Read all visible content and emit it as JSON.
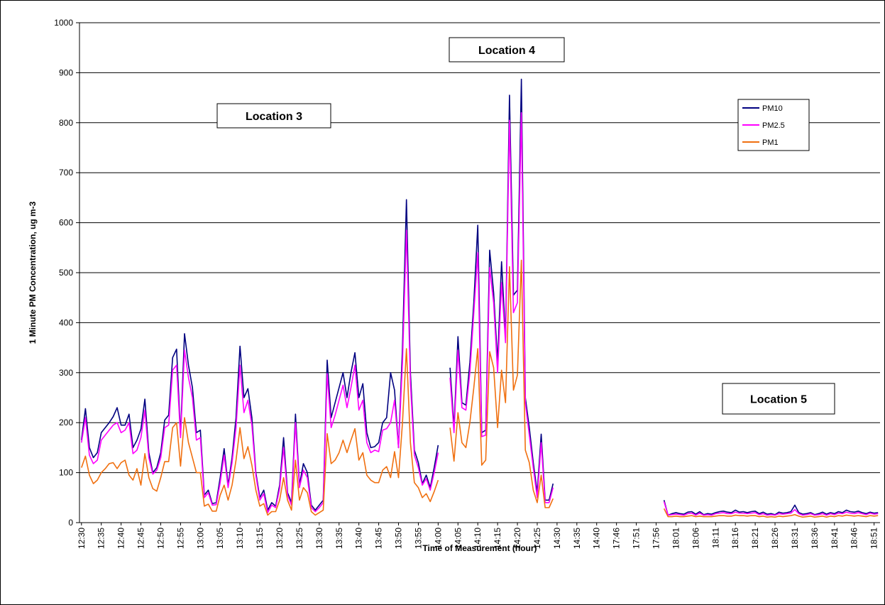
{
  "chart_data": {
    "type": "line",
    "y_label": "1 Minute PM Concentration, ug m-3",
    "x_label": "Time of Measurement (hour)",
    "annotations": [
      "Location 3",
      "Location 4",
      "Location 5"
    ],
    "ylim": [
      0,
      1000
    ],
    "yticks": [
      0,
      100,
      200,
      300,
      400,
      500,
      600,
      700,
      800,
      900,
      1000
    ],
    "grid": true,
    "legend": "right",
    "categories": [
      "12:30",
      null,
      null,
      null,
      null,
      "12:35",
      null,
      null,
      null,
      null,
      "12:40",
      null,
      null,
      null,
      null,
      "12:45",
      null,
      null,
      null,
      null,
      "12:50",
      null,
      null,
      null,
      null,
      "12:55",
      null,
      null,
      null,
      null,
      "13:00",
      null,
      null,
      null,
      null,
      "13:05",
      null,
      null,
      null,
      null,
      "13:10",
      null,
      null,
      null,
      null,
      "13:15",
      null,
      null,
      null,
      null,
      "13:20",
      null,
      null,
      null,
      null,
      "13:25",
      null,
      null,
      null,
      null,
      "13:30",
      null,
      null,
      null,
      null,
      "13:35",
      null,
      null,
      null,
      null,
      "13:40",
      null,
      null,
      null,
      null,
      "13:45",
      null,
      null,
      null,
      null,
      "13:50",
      null,
      null,
      null,
      null,
      "13:55",
      null,
      null,
      null,
      null,
      "14:00",
      null,
      null,
      null,
      null,
      "14:05",
      null,
      null,
      null,
      null,
      "14:10",
      null,
      null,
      null,
      null,
      "14:15",
      null,
      null,
      null,
      null,
      "14:20",
      null,
      null,
      null,
      null,
      "14:25",
      null,
      null,
      null,
      null,
      "14:30",
      null,
      null,
      null,
      null,
      "14:35",
      null,
      null,
      null,
      null,
      "14:40",
      null,
      null,
      null,
      null,
      "17:46",
      null,
      null,
      null,
      null,
      "17:51",
      null,
      null,
      null,
      null,
      "17:56",
      null,
      null,
      null,
      null,
      "18:01",
      null,
      null,
      null,
      null,
      "18:06",
      null,
      null,
      null,
      null,
      "18:11",
      null,
      null,
      null,
      null,
      "18:16",
      null,
      null,
      null,
      null,
      "18:21",
      null,
      null,
      null,
      null,
      "18:26",
      null,
      null,
      null,
      null,
      "18:31",
      null,
      null,
      null,
      null,
      "18:36",
      null,
      null,
      null,
      null,
      "18:41",
      null,
      null,
      null,
      null,
      "18:46",
      null,
      null,
      null,
      null,
      "18:51",
      null
    ],
    "series": [
      {
        "name": "PM10",
        "color": "#000080",
        "values": [
          165,
          228,
          150,
          130,
          140,
          180,
          190,
          200,
          212,
          230,
          195,
          195,
          217,
          150,
          165,
          187,
          247,
          140,
          100,
          110,
          140,
          205,
          215,
          330,
          347,
          175,
          378,
          315,
          270,
          180,
          185,
          55,
          65,
          38,
          40,
          90,
          148,
          75,
          130,
          210,
          353,
          250,
          268,
          210,
          100,
          50,
          65,
          25,
          40,
          33,
          75,
          170,
          60,
          40,
          217,
          75,
          118,
          100,
          35,
          25,
          35,
          45,
          325,
          210,
          240,
          270,
          300,
          250,
          300,
          340,
          250,
          278,
          180,
          150,
          152,
          160,
          200,
          210,
          300,
          265,
          150,
          350,
          646,
          300,
          145,
          120,
          78,
          95,
          70,
          110,
          155,
          null,
          null,
          310,
          190,
          372,
          240,
          235,
          320,
          440,
          595,
          180,
          185,
          545,
          460,
          320,
          522,
          370,
          855,
          455,
          465,
          887,
          250,
          190,
          120,
          60,
          177,
          45,
          45,
          78,
          null,
          null,
          null,
          null,
          null,
          null,
          null,
          null,
          null,
          null,
          null,
          null,
          null,
          null,
          null,
          null,
          null,
          null,
          null,
          null,
          null,
          null,
          null,
          null,
          null,
          null,
          null,
          45,
          15,
          18,
          20,
          18,
          17,
          21,
          22,
          17,
          22,
          16,
          18,
          17,
          20,
          22,
          23,
          21,
          20,
          25,
          21,
          22,
          20,
          22,
          23,
          18,
          21,
          17,
          18,
          16,
          21,
          19,
          20,
          22,
          35,
          20,
          17,
          18,
          20,
          16,
          18,
          21,
          17,
          20,
          18,
          22,
          20,
          25,
          22,
          21,
          23,
          20,
          18,
          21,
          19,
          20
        ]
      },
      {
        "name": "PM2.5",
        "color": "#ff00ff",
        "values": [
          160,
          210,
          135,
          118,
          125,
          165,
          175,
          185,
          195,
          200,
          180,
          185,
          200,
          138,
          145,
          170,
          225,
          130,
          97,
          105,
          130,
          190,
          195,
          305,
          315,
          170,
          345,
          290,
          250,
          165,
          170,
          50,
          60,
          35,
          36,
          80,
          135,
          70,
          120,
          190,
          315,
          220,
          245,
          195,
          95,
          45,
          58,
          20,
          35,
          30,
          68,
          150,
          55,
          35,
          200,
          70,
          105,
          90,
          30,
          22,
          30,
          40,
          298,
          190,
          215,
          245,
          275,
          230,
          270,
          315,
          225,
          245,
          160,
          140,
          145,
          142,
          185,
          188,
          200,
          245,
          150,
          320,
          585,
          280,
          135,
          110,
          75,
          88,
          65,
          100,
          140,
          null,
          null,
          290,
          180,
          345,
          230,
          225,
          300,
          420,
          540,
          172,
          175,
          510,
          440,
          300,
          480,
          360,
          805,
          420,
          440,
          820,
          240,
          175,
          110,
          50,
          160,
          40,
          40,
          70,
          null,
          null,
          null,
          null,
          null,
          null,
          null,
          null,
          null,
          null,
          null,
          null,
          null,
          null,
          null,
          null,
          null,
          null,
          null,
          null,
          null,
          null,
          null,
          null,
          null,
          null,
          null,
          42,
          15,
          16,
          17,
          16,
          15,
          18,
          19,
          15,
          19,
          15,
          16,
          15,
          18,
          19,
          20,
          18,
          18,
          21,
          19,
          19,
          18,
          19,
          20,
          16,
          18,
          15,
          16,
          15,
          18,
          17,
          18,
          19,
          26,
          18,
          15,
          16,
          18,
          15,
          16,
          18,
          15,
          18,
          16,
          19,
          18,
          21,
          19,
          18,
          20,
          18,
          16,
          19,
          17,
          18
        ]
      },
      {
        "name": "PM1",
        "color": "#f07010",
        "values": [
          110,
          133,
          95,
          78,
          85,
          100,
          108,
          118,
          120,
          108,
          120,
          125,
          95,
          85,
          108,
          75,
          138,
          90,
          68,
          63,
          90,
          122,
          122,
          190,
          200,
          113,
          210,
          160,
          130,
          100,
          100,
          33,
          37,
          23,
          23,
          55,
          75,
          45,
          75,
          125,
          190,
          128,
          152,
          115,
          65,
          33,
          38,
          15,
          22,
          22,
          45,
          90,
          45,
          25,
          125,
          45,
          70,
          60,
          22,
          15,
          20,
          25,
          178,
          118,
          125,
          140,
          165,
          140,
          165,
          188,
          125,
          140,
          95,
          85,
          80,
          80,
          105,
          112,
          90,
          142,
          90,
          200,
          348,
          160,
          80,
          70,
          50,
          58,
          42,
          62,
          85,
          null,
          null,
          190,
          123,
          220,
          160,
          150,
          200,
          270,
          348,
          115,
          125,
          342,
          310,
          190,
          305,
          240,
          512,
          265,
          295,
          525,
          145,
          120,
          65,
          40,
          95,
          30,
          30,
          48,
          null,
          null,
          null,
          null,
          null,
          null,
          null,
          null,
          null,
          null,
          null,
          null,
          null,
          null,
          null,
          null,
          null,
          null,
          null,
          null,
          null,
          null,
          null,
          null,
          null,
          null,
          null,
          28,
          12,
          12,
          13,
          12,
          12,
          13,
          14,
          12,
          13,
          12,
          12,
          12,
          13,
          14,
          14,
          13,
          13,
          15,
          14,
          14,
          13,
          14,
          14,
          12,
          13,
          11,
          12,
          11,
          13,
          12,
          13,
          14,
          16,
          13,
          11,
          12,
          13,
          11,
          12,
          13,
          11,
          13,
          12,
          14,
          13,
          15,
          14,
          13,
          14,
          13,
          12,
          14,
          13,
          14
        ]
      }
    ]
  }
}
